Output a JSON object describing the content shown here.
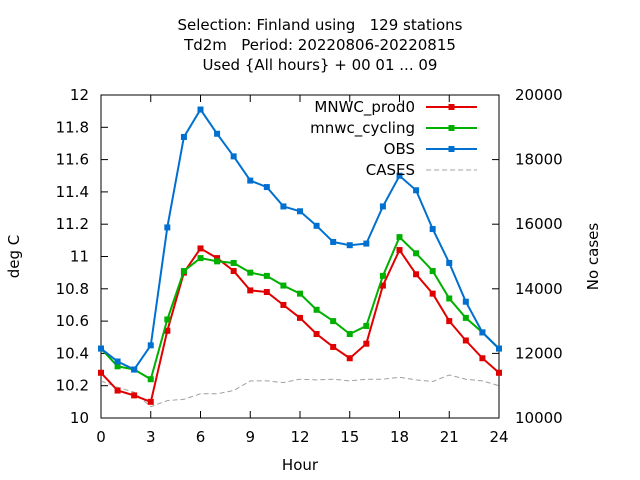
{
  "title": {
    "line1": "Selection: Finland using   129 stations",
    "line2": "Td2m   Period: 20220806-20220815",
    "line3": "Used {All hours} + 00 01 ... 09"
  },
  "chart_data": {
    "type": "line",
    "xlabel": "Hour",
    "ylabel": "deg C",
    "y2label": "No cases",
    "xlim": [
      0,
      24
    ],
    "ylim": [
      10,
      12
    ],
    "y2lim": [
      10000,
      20000
    ],
    "xticks": [
      0,
      3,
      6,
      9,
      12,
      15,
      18,
      21,
      24
    ],
    "yticks": [
      "10",
      "10.2",
      "10.4",
      "10.6",
      "10.8",
      "11",
      "11.2",
      "11.4",
      "11.6",
      "11.8",
      "12"
    ],
    "y2ticks": [
      "10000",
      "12000",
      "14000",
      "16000",
      "18000",
      "20000"
    ],
    "legend_position": "top-right",
    "grid": false,
    "x": [
      0,
      1,
      2,
      3,
      4,
      5,
      6,
      7,
      8,
      9,
      10,
      11,
      12,
      13,
      14,
      15,
      16,
      17,
      18,
      19,
      20,
      21,
      22,
      23,
      24
    ],
    "series": [
      {
        "name": "MNWC_prod0",
        "color": "#e00000",
        "axis": "left",
        "values": [
          10.28,
          10.17,
          10.14,
          10.1,
          10.54,
          10.9,
          11.05,
          10.99,
          10.91,
          10.79,
          10.78,
          10.7,
          10.62,
          10.52,
          10.44,
          10.37,
          10.46,
          10.82,
          11.04,
          10.89,
          10.77,
          10.6,
          10.48,
          10.37,
          10.28
        ]
      },
      {
        "name": "mnwc_cycling",
        "color": "#00b000",
        "axis": "left",
        "values": [
          10.43,
          10.32,
          10.3,
          10.24,
          10.61,
          10.91,
          10.99,
          10.97,
          10.96,
          10.9,
          10.88,
          10.82,
          10.77,
          10.67,
          10.6,
          10.52,
          10.57,
          10.88,
          11.12,
          11.02,
          10.91,
          10.74,
          10.62,
          10.53,
          10.43
        ]
      },
      {
        "name": "OBS",
        "color": "#0070d0",
        "axis": "left",
        "values": [
          10.43,
          10.35,
          10.3,
          10.45,
          11.18,
          11.74,
          11.91,
          11.76,
          11.62,
          11.47,
          11.43,
          11.31,
          11.28,
          11.19,
          11.09,
          11.07,
          11.08,
          11.31,
          11.5,
          11.41,
          11.17,
          10.96,
          10.72,
          10.53,
          10.43
        ]
      },
      {
        "name": "CASES",
        "color": "#a0a0a0",
        "axis": "right",
        "dashed": true,
        "values": [
          11150,
          10950,
          10800,
          10350,
          10540,
          10580,
          10750,
          10750,
          10850,
          11150,
          11150,
          11100,
          11200,
          11180,
          11200,
          11150,
          11200,
          11200,
          11260,
          11180,
          11130,
          11330,
          11200,
          11150,
          11000
        ]
      }
    ]
  }
}
